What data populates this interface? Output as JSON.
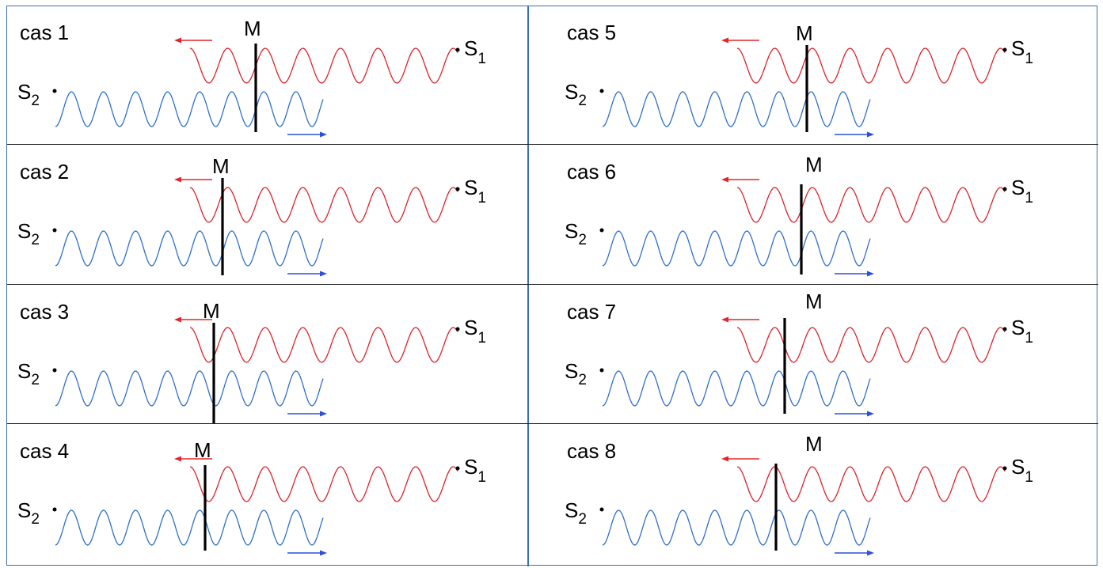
{
  "cases": [
    {
      "label": "cas 1",
      "m": "M",
      "s1": "S",
      "s1_sub": "1",
      "s2": "S",
      "s2_sub": "2"
    },
    {
      "label": "cas 2",
      "m": "M",
      "s1": "S",
      "s1_sub": "1",
      "s2": "S",
      "s2_sub": "2"
    },
    {
      "label": "cas 3",
      "m": "M",
      "s1": "S",
      "s1_sub": "1",
      "s2": "S",
      "s2_sub": "2"
    },
    {
      "label": "cas 4",
      "m": "M",
      "s1": "S",
      "s1_sub": "1",
      "s2": "S",
      "s2_sub": "2"
    },
    {
      "label": "cas 5",
      "m": "M",
      "s1": "S",
      "s1_sub": "1",
      "s2": "S",
      "s2_sub": "2"
    },
    {
      "label": "cas 6",
      "m": "M",
      "s1": "S",
      "s1_sub": "1",
      "s2": "S",
      "s2_sub": "2"
    },
    {
      "label": "cas 7",
      "m": "M",
      "s1": "S",
      "s1_sub": "1",
      "s2": "S",
      "s2_sub": "2"
    },
    {
      "label": "cas 8",
      "m": "M",
      "s1": "S",
      "s1_sub": "1",
      "s2": "S",
      "s2_sub": "2"
    }
  ],
  "colors": {
    "red_wave": "#d9232a",
    "blue_wave": "#2f6fc9",
    "arrow_red": "#e0262c",
    "arrow_blue": "#2c50d8",
    "border": "#3a6fb0",
    "m_line": "#000000"
  }
}
